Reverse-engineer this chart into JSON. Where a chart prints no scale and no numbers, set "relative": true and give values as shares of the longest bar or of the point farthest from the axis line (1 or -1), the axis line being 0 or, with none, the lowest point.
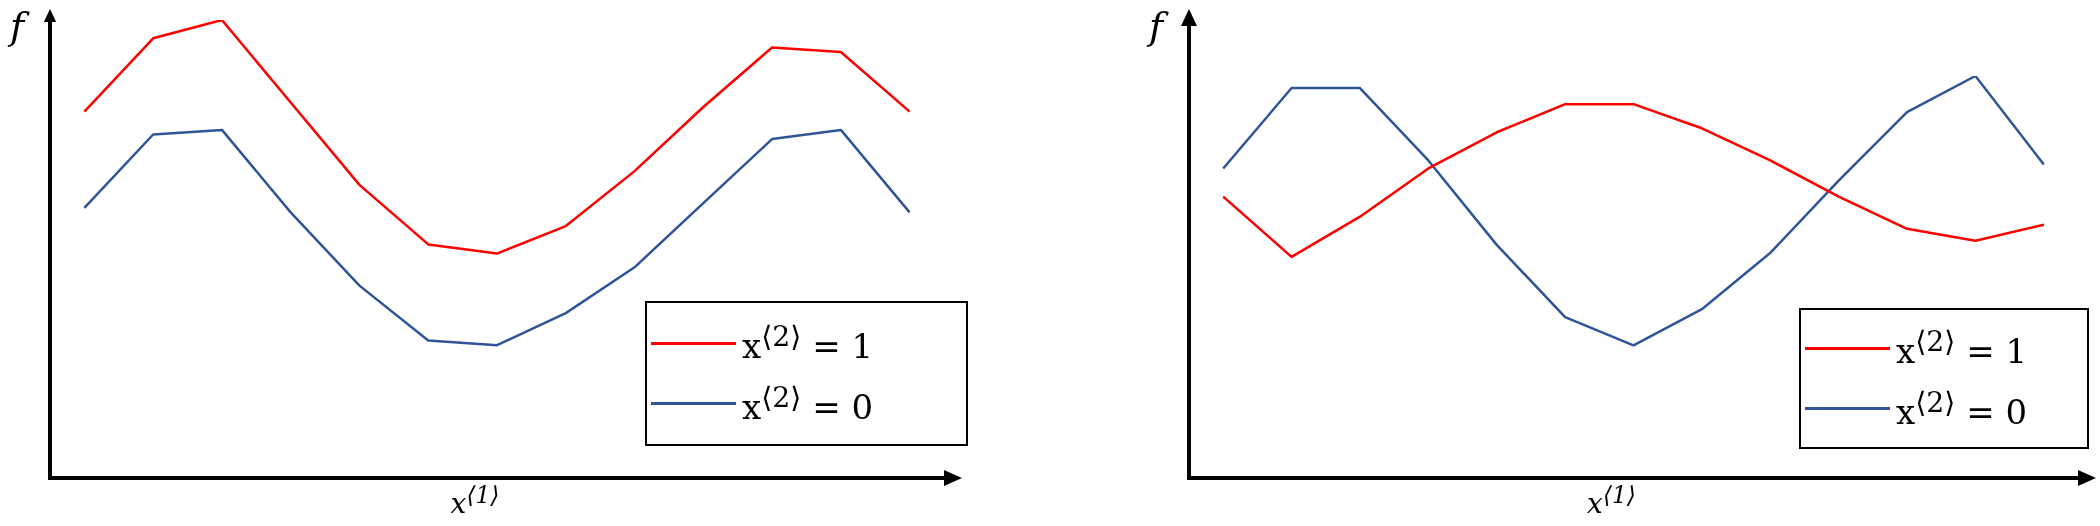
{
  "chart_data": [
    {
      "type": "line",
      "relative": true,
      "xlabel": "x$^{⟨1⟩}$",
      "ylabel": "f",
      "legend": "bottom right",
      "marker": "none",
      "categories": [
        null,
        null,
        null,
        null,
        null,
        null,
        null,
        null,
        null,
        null,
        null,
        null,
        null
      ],
      "series": [
        {
          "name": "x$^{⟨2⟩}$ = 1",
          "color": "#ff0000",
          "values": [
            0.8,
            0.96,
            1.0,
            0.82,
            0.64,
            0.51,
            0.49,
            0.55,
            0.67,
            0.81,
            0.94,
            0.93,
            0.8
          ]
        },
        {
          "name": "x$^{⟨2⟩}$ = 0",
          "color": "#2f5597",
          "values": [
            0.59,
            0.75,
            0.76,
            0.58,
            0.42,
            0.3,
            0.29,
            0.36,
            0.46,
            0.6,
            0.74,
            0.76,
            0.58
          ]
        }
      ]
    },
    {
      "type": "line",
      "relative": true,
      "xlabel": "x$^{⟨1⟩}$",
      "ylabel": "f",
      "legend": "bottom right",
      "marker": "none",
      "categories": [
        null,
        null,
        null,
        null,
        null,
        null,
        null,
        null,
        null,
        null,
        null,
        null,
        null
      ],
      "series": [
        {
          "name": "x$^{⟨2⟩}$ = 1",
          "color": "#ff0000",
          "values": [
            0.7,
            0.55,
            0.65,
            0.77,
            0.86,
            0.93,
            0.93,
            0.87,
            0.79,
            0.7,
            0.62,
            0.59,
            0.63
          ]
        },
        {
          "name": "x$^{⟨2⟩}$ = 0",
          "color": "#2f5597",
          "values": [
            0.77,
            0.97,
            0.97,
            0.79,
            0.58,
            0.4,
            0.33,
            0.42,
            0.56,
            0.74,
            0.91,
            1.0,
            0.78
          ]
        }
      ]
    }
  ]
}
